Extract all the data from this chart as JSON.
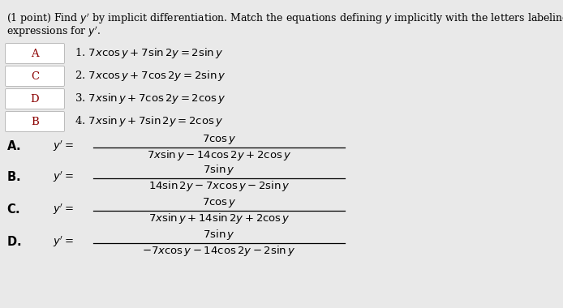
{
  "background_color": "#e9e9e9",
  "title_line1": "(1 point) Find $y'$ by implicit differentiation. Match the equations defining $y$ implicitly with the letters labeling the",
  "title_line2": "expressions for $y'$.",
  "rows": [
    {
      "letter": "A",
      "num": "1.",
      "eq": "$7x\\cos y + 7\\sin 2y = 2\\sin y$"
    },
    {
      "letter": "C",
      "num": "2.",
      "eq": "$7x\\cos y + 7\\cos 2y = 2\\sin y$"
    },
    {
      "letter": "D",
      "num": "3.",
      "eq": "$7x\\sin y + 7\\cos 2y = 2\\cos y$"
    },
    {
      "letter": "B",
      "num": "4.",
      "eq": "$7x\\sin y + 7\\sin 2y = 2\\cos y$"
    }
  ],
  "answers": [
    {
      "label": "A",
      "numerator": "$7\\cos y$",
      "denominator": "$7x\\sin y - 14\\cos 2y + 2\\cos y$"
    },
    {
      "label": "B",
      "numerator": "$7\\sin y$",
      "denominator": "$14\\sin 2y - 7x\\cos y - 2\\sin y$"
    },
    {
      "label": "C",
      "numerator": "$7\\cos y$",
      "denominator": "$7x\\sin y + 14\\sin 2y + 2\\cos y$"
    },
    {
      "label": "D",
      "numerator": "$7\\sin y$",
      "denominator": "$-7x\\cos y - 14\\cos 2y - 2\\sin y$"
    }
  ],
  "box_color": "#ffffff",
  "text_color": "#000000",
  "letter_color": "#8b0000",
  "fs_title": 9.0,
  "fs_body": 9.5,
  "fs_label": 10.5
}
